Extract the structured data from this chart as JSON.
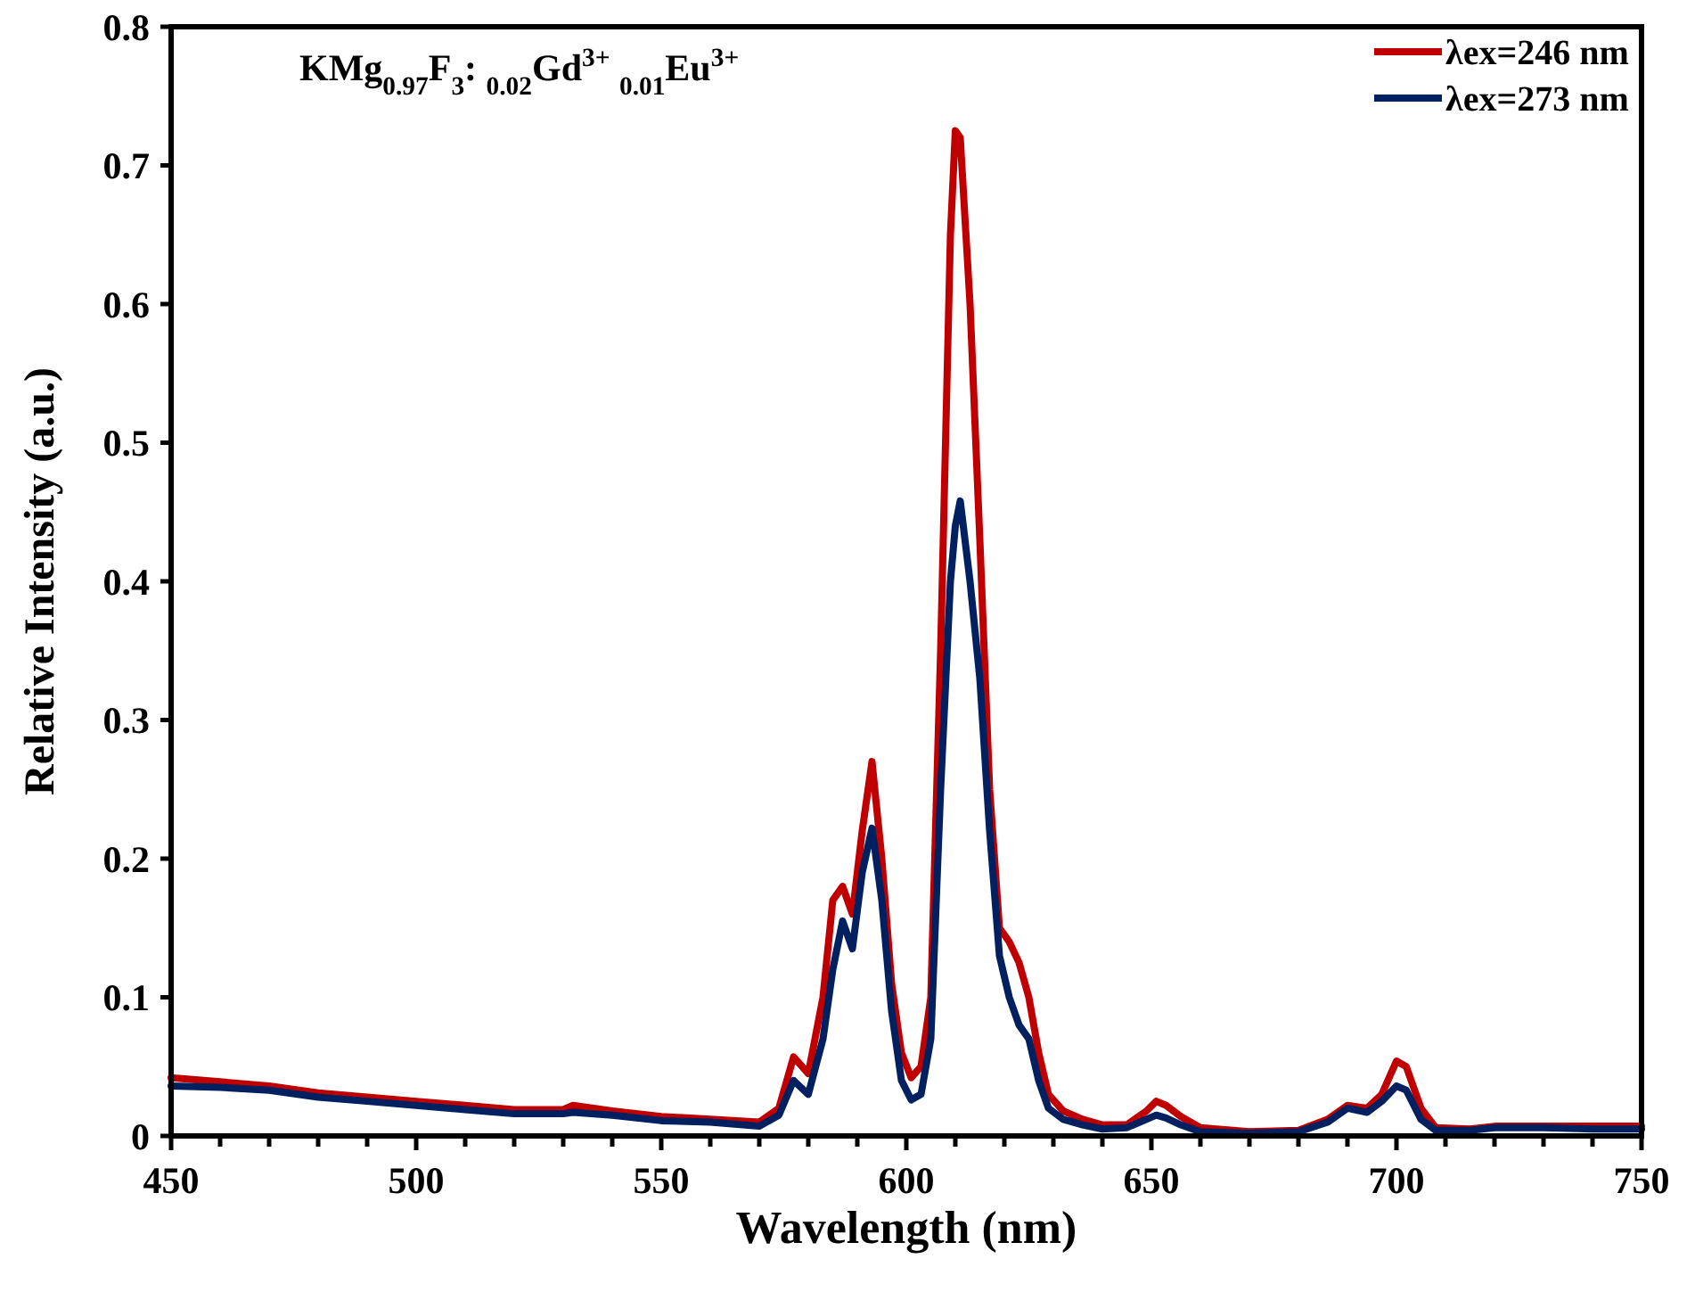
{
  "chart_data": {
    "type": "line",
    "title": "KMg$_{0.97}$F$_{3}$: $_{0.02}$Gd$^{3+}$ $_{0.01}$Eu$^{3+}$",
    "xlabel": "Wavelength (nm)",
    "ylabel": "Relative Intensity (a.u.)",
    "xlim": [
      450,
      750
    ],
    "ylim": [
      0,
      0.8
    ],
    "xticks": [
      450,
      {
        "value": 460,
        "label": null
      },
      {
        "value": 470,
        "label": null
      },
      {
        "value": 480,
        "label": null
      },
      {
        "value": 490,
        "label": null
      },
      500,
      {
        "value": 510,
        "label": null
      },
      {
        "value": 520,
        "label": null
      },
      {
        "value": 530,
        "label": null
      },
      {
        "value": 540,
        "label": null
      },
      550,
      {
        "value": 560,
        "label": null
      },
      {
        "value": 570,
        "label": null
      },
      {
        "value": 580,
        "label": null
      },
      {
        "value": 590,
        "label": null
      },
      600,
      {
        "value": 610,
        "label": null
      },
      {
        "value": 620,
        "label": null
      },
      {
        "value": 630,
        "label": null
      },
      {
        "value": 640,
        "label": null
      },
      650,
      {
        "value": 660,
        "label": null
      },
      {
        "value": 670,
        "label": null
      },
      {
        "value": 680,
        "label": null
      },
      {
        "value": 690,
        "label": null
      },
      700,
      {
        "value": 710,
        "label": null
      },
      {
        "value": 720,
        "label": null
      },
      {
        "value": 730,
        "label": null
      },
      {
        "value": 740,
        "label": null
      },
      750
    ],
    "yticks": [
      0,
      0.1,
      0.2,
      0.3,
      0.4,
      0.5,
      0.6,
      0.7,
      0.8
    ],
    "grid": false,
    "legend": "top right",
    "marker": "none",
    "line_style": "solid",
    "x": [
      450,
      460,
      470,
      480,
      490,
      500,
      510,
      520,
      530,
      532,
      540,
      550,
      560,
      570,
      574,
      577,
      580,
      583,
      585,
      587,
      589,
      591,
      593,
      595,
      597,
      599,
      601,
      603,
      605,
      607,
      609,
      610,
      611,
      613,
      615,
      617,
      619,
      621,
      623,
      625,
      627,
      629,
      632,
      636,
      640,
      645,
      649,
      651,
      653,
      656,
      660,
      670,
      680,
      686,
      690,
      694,
      697,
      700,
      702,
      705,
      708,
      715,
      720,
      730,
      740,
      750
    ],
    "series": [
      {
        "name": "λex=246 nm",
        "color": "#c00000",
        "values": [
          0.042,
          0.039,
          0.036,
          0.031,
          0.028,
          0.025,
          0.022,
          0.019,
          0.019,
          0.022,
          0.018,
          0.014,
          0.012,
          0.01,
          0.02,
          0.057,
          0.045,
          0.1,
          0.17,
          0.18,
          0.16,
          0.22,
          0.27,
          0.2,
          0.11,
          0.06,
          0.042,
          0.05,
          0.1,
          0.35,
          0.65,
          0.725,
          0.72,
          0.6,
          0.43,
          0.25,
          0.15,
          0.14,
          0.125,
          0.1,
          0.06,
          0.03,
          0.018,
          0.012,
          0.008,
          0.008,
          0.018,
          0.025,
          0.022,
          0.014,
          0.006,
          0.003,
          0.004,
          0.012,
          0.022,
          0.02,
          0.03,
          0.054,
          0.05,
          0.02,
          0.006,
          0.005,
          0.007,
          0.007,
          0.007,
          0.007
        ]
      },
      {
        "name": "λex=273 nm",
        "color": "#002060",
        "values": [
          0.036,
          0.035,
          0.033,
          0.028,
          0.025,
          0.022,
          0.019,
          0.016,
          0.016,
          0.017,
          0.015,
          0.011,
          0.01,
          0.007,
          0.015,
          0.04,
          0.03,
          0.07,
          0.12,
          0.155,
          0.135,
          0.19,
          0.222,
          0.17,
          0.09,
          0.04,
          0.026,
          0.03,
          0.07,
          0.25,
          0.4,
          0.44,
          0.458,
          0.4,
          0.33,
          0.22,
          0.13,
          0.1,
          0.08,
          0.07,
          0.04,
          0.02,
          0.012,
          0.008,
          0.005,
          0.006,
          0.012,
          0.015,
          0.013,
          0.008,
          0.003,
          0.002,
          0.003,
          0.01,
          0.02,
          0.017,
          0.025,
          0.036,
          0.033,
          0.012,
          0.004,
          0.004,
          0.006,
          0.006,
          0.005,
          0.005
        ]
      }
    ]
  }
}
